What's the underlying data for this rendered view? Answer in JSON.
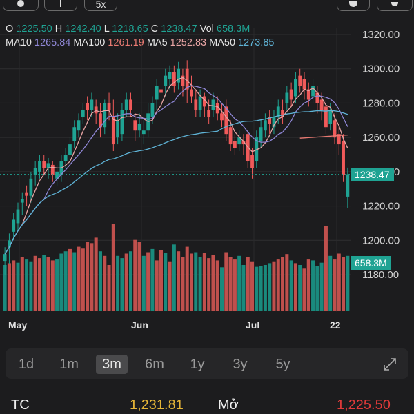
{
  "ohlc": {
    "o_label": "O",
    "o_value": "1225.50",
    "h_label": "H",
    "h_value": "1242.40",
    "l_label": "L",
    "l_value": "1218.65",
    "c_label": "C",
    "c_value": "1238.47",
    "vol_label": "Vol",
    "vol_value": "658.3M"
  },
  "ma": {
    "ma10_label": "MA10",
    "ma10_value": "1265.84",
    "ma100_label": "MA100",
    "ma100_value": "1261.19",
    "ma5_label": "MA5",
    "ma5_value": "1252.83",
    "ma50_label": "MA50",
    "ma50_value": "1273.85"
  },
  "toolbar": {
    "zoom_label": "5x"
  },
  "price_tag": "1238.47",
  "volume_tag": "658.3M",
  "timeframes": [
    "1d",
    "1m",
    "3m",
    "6m",
    "1y",
    "3y",
    "5y"
  ],
  "selected_timeframe": "3m",
  "quote": {
    "tc_label": "TC",
    "tc_value": "1,231.81",
    "open_label": "Mở",
    "open_value": "1,225.50"
  },
  "colors": {
    "up": "#1fa393",
    "down": "#f05a5a",
    "bg": "#1c1c1e",
    "ma10": "#8f87d6",
    "ma100": "#e97a72",
    "ma5": "#e8a4a4",
    "ma50": "#5fb3d6"
  },
  "chart_data": {
    "type": "candlestick",
    "y_ticks": [
      "1320.00",
      "1300.00",
      "1280.00",
      "1260.00",
      "1240.00",
      "1220.00",
      "1200.00",
      "1180.00"
    ],
    "ylim": [
      1173,
      1325
    ],
    "x_labels": [
      "May",
      "Jun",
      "Jul",
      "22"
    ],
    "candles": [
      [
        1188,
        1192,
        1180,
        1196
      ],
      [
        1196,
        1200,
        1186,
        1204
      ],
      [
        1205,
        1212,
        1200,
        1216
      ],
      [
        1210,
        1218,
        1206,
        1222
      ],
      [
        1222,
        1224,
        1215,
        1228
      ],
      [
        1228,
        1226,
        1220,
        1232
      ],
      [
        1226,
        1236,
        1222,
        1240
      ],
      [
        1238,
        1242,
        1232,
        1246
      ],
      [
        1240,
        1246,
        1236,
        1250
      ],
      [
        1246,
        1242,
        1238,
        1250
      ],
      [
        1242,
        1245,
        1236,
        1248
      ],
      [
        1244,
        1238,
        1234,
        1246
      ],
      [
        1236,
        1240,
        1232,
        1244
      ],
      [
        1238,
        1246,
        1234,
        1250
      ],
      [
        1246,
        1250,
        1242,
        1254
      ],
      [
        1250,
        1256,
        1246,
        1260
      ],
      [
        1258,
        1266,
        1254,
        1270
      ],
      [
        1264,
        1270,
        1260,
        1274
      ],
      [
        1272,
        1276,
        1268,
        1280
      ],
      [
        1280,
        1276,
        1270,
        1284
      ],
      [
        1276,
        1282,
        1272,
        1286
      ],
      [
        1278,
        1274,
        1268,
        1282
      ],
      [
        1274,
        1266,
        1260,
        1280
      ],
      [
        1266,
        1280,
        1262,
        1282
      ],
      [
        1280,
        1276,
        1270,
        1286
      ],
      [
        1272,
        1256,
        1252,
        1282
      ],
      [
        1260,
        1270,
        1256,
        1274
      ],
      [
        1262,
        1276,
        1258,
        1280
      ],
      [
        1276,
        1282,
        1272,
        1286
      ],
      [
        1282,
        1276,
        1272,
        1286
      ],
      [
        1270,
        1264,
        1258,
        1274
      ],
      [
        1264,
        1268,
        1260,
        1274
      ],
      [
        1262,
        1264,
        1256,
        1270
      ],
      [
        1264,
        1274,
        1260,
        1280
      ],
      [
        1272,
        1280,
        1268,
        1284
      ],
      [
        1282,
        1290,
        1276,
        1294
      ],
      [
        1288,
        1286,
        1280,
        1294
      ],
      [
        1290,
        1296,
        1284,
        1300
      ],
      [
        1294,
        1298,
        1288,
        1302
      ],
      [
        1298,
        1290,
        1286,
        1302
      ],
      [
        1292,
        1300,
        1288,
        1304
      ],
      [
        1296,
        1290,
        1284,
        1300
      ],
      [
        1300,
        1288,
        1280,
        1305
      ],
      [
        1288,
        1284,
        1280,
        1296
      ],
      [
        1282,
        1276,
        1272,
        1288
      ],
      [
        1276,
        1284,
        1272,
        1288
      ],
      [
        1284,
        1278,
        1272,
        1286
      ],
      [
        1276,
        1272,
        1268,
        1282
      ],
      [
        1276,
        1282,
        1272,
        1286
      ],
      [
        1280,
        1274,
        1270,
        1284
      ],
      [
        1274,
        1270,
        1266,
        1280
      ],
      [
        1278,
        1262,
        1258,
        1282
      ],
      [
        1266,
        1256,
        1252,
        1270
      ],
      [
        1258,
        1254,
        1250,
        1262
      ],
      [
        1256,
        1260,
        1252,
        1264
      ],
      [
        1258,
        1256,
        1250,
        1262
      ],
      [
        1262,
        1246,
        1242,
        1264
      ],
      [
        1250,
        1242,
        1236,
        1254
      ],
      [
        1246,
        1260,
        1242,
        1264
      ],
      [
        1258,
        1266,
        1254,
        1270
      ],
      [
        1264,
        1270,
        1260,
        1274
      ],
      [
        1272,
        1268,
        1262,
        1276
      ],
      [
        1266,
        1272,
        1262,
        1276
      ],
      [
        1272,
        1278,
        1268,
        1282
      ],
      [
        1276,
        1272,
        1268,
        1282
      ],
      [
        1280,
        1286,
        1276,
        1290
      ],
      [
        1288,
        1282,
        1278,
        1292
      ],
      [
        1284,
        1294,
        1280,
        1298
      ],
      [
        1296,
        1290,
        1286,
        1300
      ],
      [
        1294,
        1288,
        1282,
        1298
      ],
      [
        1288,
        1282,
        1278,
        1292
      ],
      [
        1284,
        1290,
        1280,
        1294
      ],
      [
        1286,
        1280,
        1274,
        1290
      ],
      [
        1282,
        1276,
        1270,
        1286
      ],
      [
        1278,
        1266,
        1262,
        1282
      ],
      [
        1268,
        1276,
        1264,
        1280
      ],
      [
        1270,
        1260,
        1256,
        1274
      ],
      [
        1262,
        1256,
        1250,
        1268
      ],
      [
        1258,
        1238,
        1234,
        1262
      ],
      [
        1225.5,
        1238.47,
        1218.65,
        1242.4
      ]
    ],
    "volume": [
      [
        100,
        "up"
      ],
      [
        104,
        "down"
      ],
      [
        110,
        "down"
      ],
      [
        105,
        "up"
      ],
      [
        118,
        "down"
      ],
      [
        112,
        "up"
      ],
      [
        108,
        "up"
      ],
      [
        120,
        "down"
      ],
      [
        115,
        "down"
      ],
      [
        122,
        "up"
      ],
      [
        118,
        "down"
      ],
      [
        110,
        "down"
      ],
      [
        112,
        "up"
      ],
      [
        125,
        "up"
      ],
      [
        130,
        "up"
      ],
      [
        135,
        "down"
      ],
      [
        128,
        "up"
      ],
      [
        140,
        "down"
      ],
      [
        136,
        "down"
      ],
      [
        150,
        "down"
      ],
      [
        148,
        "down"
      ],
      [
        160,
        "down"
      ],
      [
        130,
        "up"
      ],
      [
        120,
        "down"
      ],
      [
        100,
        "down"
      ],
      [
        190,
        "down"
      ],
      [
        120,
        "up"
      ],
      [
        115,
        "up"
      ],
      [
        125,
        "down"
      ],
      [
        130,
        "up"
      ],
      [
        155,
        "down"
      ],
      [
        150,
        "down"
      ],
      [
        120,
        "up"
      ],
      [
        128,
        "down"
      ],
      [
        135,
        "up"
      ],
      [
        110,
        "down"
      ],
      [
        132,
        "down"
      ],
      [
        126,
        "up"
      ],
      [
        108,
        "down"
      ],
      [
        145,
        "up"
      ],
      [
        130,
        "down"
      ],
      [
        118,
        "down"
      ],
      [
        140,
        "down"
      ],
      [
        125,
        "down"
      ],
      [
        128,
        "up"
      ],
      [
        118,
        "up"
      ],
      [
        126,
        "down"
      ],
      [
        115,
        "down"
      ],
      [
        122,
        "down"
      ],
      [
        110,
        "down"
      ],
      [
        95,
        "up"
      ],
      [
        128,
        "down"
      ],
      [
        118,
        "down"
      ],
      [
        112,
        "down"
      ],
      [
        120,
        "up"
      ],
      [
        100,
        "up"
      ],
      [
        118,
        "down"
      ],
      [
        108,
        "down"
      ],
      [
        96,
        "up"
      ],
      [
        98,
        "up"
      ],
      [
        100,
        "up"
      ],
      [
        104,
        "up"
      ],
      [
        108,
        "down"
      ],
      [
        112,
        "down"
      ],
      [
        118,
        "down"
      ],
      [
        124,
        "down"
      ],
      [
        110,
        "up"
      ],
      [
        104,
        "down"
      ],
      [
        100,
        "up"
      ],
      [
        92,
        "down"
      ],
      [
        112,
        "down"
      ],
      [
        110,
        "up"
      ],
      [
        98,
        "up"
      ],
      [
        105,
        "up"
      ],
      [
        185,
        "down"
      ],
      [
        120,
        "up"
      ],
      [
        112,
        "down"
      ],
      [
        125,
        "down"
      ],
      [
        118,
        "down"
      ],
      [
        120,
        "up"
      ]
    ]
  }
}
